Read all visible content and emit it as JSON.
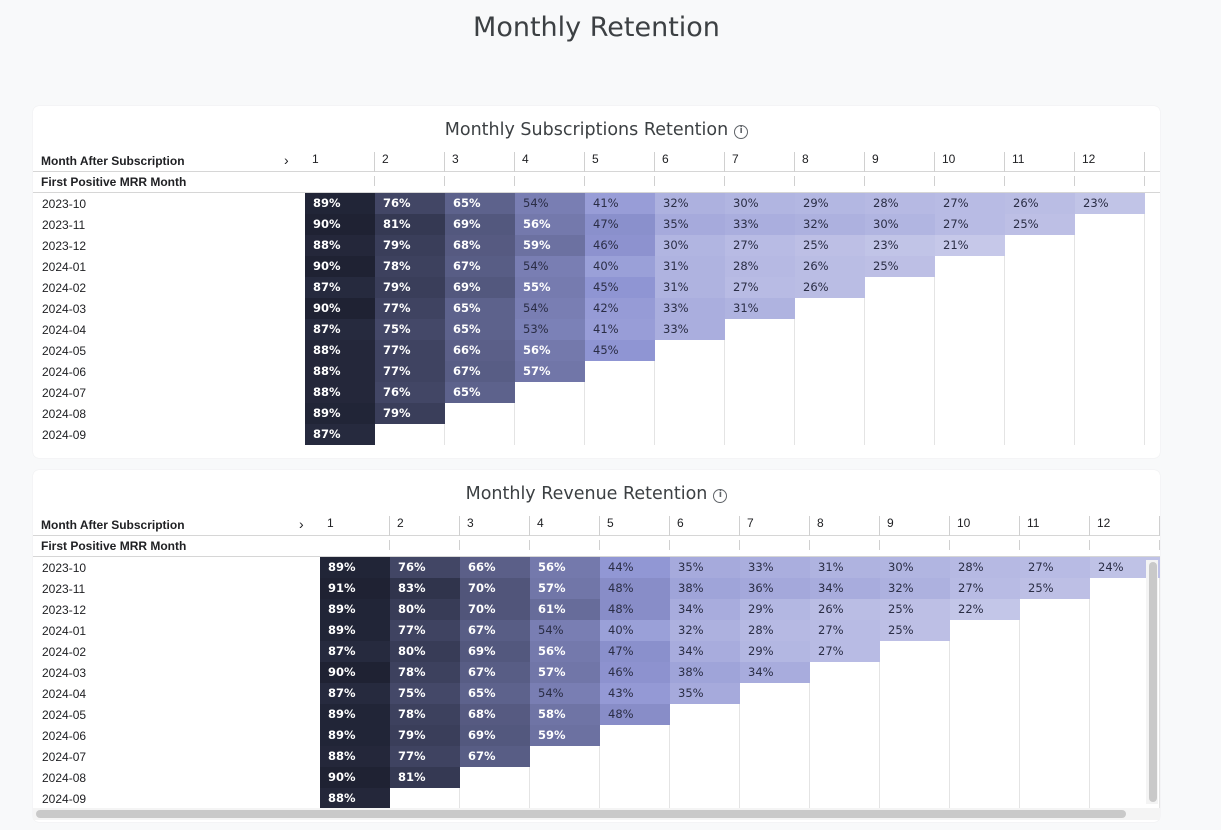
{
  "page": {
    "title": "Monthly Retention"
  },
  "tables": [
    {
      "title": "Monthly Subscriptions Retention",
      "col_header_label": "Month After Subscription",
      "row_header_label": "First Positive MRR Month",
      "columns": [
        "1",
        "2",
        "3",
        "4",
        "5",
        "6",
        "7",
        "8",
        "9",
        "10",
        "11",
        "12"
      ],
      "rows": [
        {
          "month": "2023-10",
          "values": [
            89,
            76,
            65,
            54,
            41,
            32,
            30,
            29,
            28,
            27,
            26,
            23
          ]
        },
        {
          "month": "2023-11",
          "values": [
            90,
            81,
            69,
            56,
            47,
            35,
            33,
            32,
            30,
            27,
            25
          ]
        },
        {
          "month": "2023-12",
          "values": [
            88,
            79,
            68,
            59,
            46,
            30,
            27,
            25,
            23,
            21
          ]
        },
        {
          "month": "2024-01",
          "values": [
            90,
            78,
            67,
            54,
            40,
            31,
            28,
            26,
            25
          ]
        },
        {
          "month": "2024-02",
          "values": [
            87,
            79,
            69,
            55,
            45,
            31,
            27,
            26
          ]
        },
        {
          "month": "2024-03",
          "values": [
            90,
            77,
            65,
            54,
            42,
            33,
            31
          ]
        },
        {
          "month": "2024-04",
          "values": [
            87,
            75,
            65,
            53,
            41,
            33
          ]
        },
        {
          "month": "2024-05",
          "values": [
            88,
            77,
            66,
            56,
            45
          ]
        },
        {
          "month": "2024-06",
          "values": [
            88,
            77,
            67,
            57
          ]
        },
        {
          "month": "2024-07",
          "values": [
            88,
            76,
            65
          ]
        },
        {
          "month": "2024-08",
          "values": [
            89,
            79
          ]
        },
        {
          "month": "2024-09",
          "values": [
            87
          ]
        }
      ]
    },
    {
      "title": "Monthly Revenue Retention",
      "col_header_label": "Month After Subscription",
      "row_header_label": "First Positive MRR Month",
      "columns": [
        "1",
        "2",
        "3",
        "4",
        "5",
        "6",
        "7",
        "8",
        "9",
        "10",
        "11",
        "12"
      ],
      "rows": [
        {
          "month": "2023-10",
          "values": [
            89,
            76,
            66,
            56,
            44,
            35,
            33,
            31,
            30,
            28,
            27,
            24
          ]
        },
        {
          "month": "2023-11",
          "values": [
            91,
            83,
            70,
            57,
            48,
            38,
            36,
            34,
            32,
            27,
            25
          ]
        },
        {
          "month": "2023-12",
          "values": [
            89,
            80,
            70,
            61,
            48,
            34,
            29,
            26,
            25,
            22
          ]
        },
        {
          "month": "2024-01",
          "values": [
            89,
            77,
            67,
            54,
            40,
            32,
            28,
            27,
            25
          ]
        },
        {
          "month": "2024-02",
          "values": [
            87,
            80,
            69,
            56,
            47,
            34,
            29,
            27
          ]
        },
        {
          "month": "2024-03",
          "values": [
            90,
            78,
            67,
            57,
            46,
            38,
            34
          ]
        },
        {
          "month": "2024-04",
          "values": [
            87,
            75,
            65,
            54,
            43,
            35
          ]
        },
        {
          "month": "2024-05",
          "values": [
            89,
            78,
            68,
            58,
            48
          ]
        },
        {
          "month": "2024-06",
          "values": [
            89,
            79,
            69,
            59
          ]
        },
        {
          "month": "2024-07",
          "values": [
            88,
            77,
            67
          ]
        },
        {
          "month": "2024-08",
          "values": [
            90,
            81
          ]
        },
        {
          "month": "2024-09",
          "values": [
            88
          ]
        }
      ]
    }
  ],
  "colors": {
    "high": "#1f2233",
    "mid": "#8f95d3",
    "low": "#c8caea"
  }
}
